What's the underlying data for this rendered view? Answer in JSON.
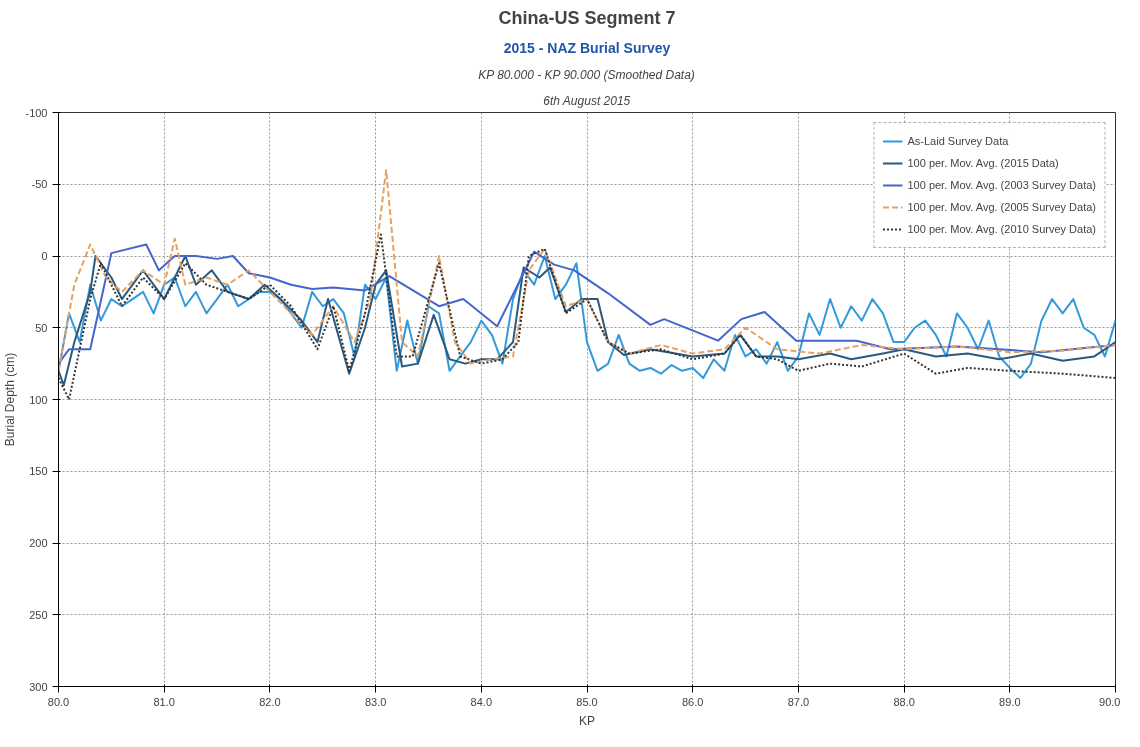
{
  "chart_data": {
    "type": "line",
    "title": "China-US Segment 7",
    "subtitle": "2015 - NAZ Burial Survey",
    "annotations": [
      "KP 80.000 - KP 90.000 (Smoothed Data)",
      "6th August 2015"
    ],
    "xlabel": "KP",
    "ylabel": "Burial Depth (cm)",
    "xlim": [
      80,
      90
    ],
    "ylim": [
      300,
      -100
    ],
    "xticks": [
      {
        "value": 80,
        "label": "80.0"
      },
      {
        "value": 81,
        "label": "81.0"
      },
      {
        "value": 82,
        "label": "82.0"
      },
      {
        "value": 83,
        "label": "83.0"
      },
      {
        "value": 84,
        "label": "84.0"
      },
      {
        "value": 85,
        "label": "85.0"
      },
      {
        "value": 86,
        "label": "86.0"
      },
      {
        "value": 87,
        "label": "87.0"
      },
      {
        "value": 88,
        "label": "88.0"
      },
      {
        "value": 89,
        "label": "89.0"
      },
      {
        "value": 90,
        "label": "90.0"
      }
    ],
    "yticks": [
      -100,
      -50,
      0,
      50,
      100,
      150,
      200,
      250,
      300
    ],
    "grid": true,
    "legend": "top right",
    "line_style": "solid",
    "series": [
      {
        "name": "As-Laid Survey Data",
        "color": "#3399dd",
        "x": [
          80.0,
          80.1,
          80.2,
          80.3,
          80.4,
          80.5,
          80.6,
          80.7,
          80.8,
          80.9,
          81.0,
          81.1,
          81.2,
          81.3,
          81.4,
          81.5,
          81.6,
          81.7,
          81.8,
          81.9,
          82.0,
          82.1,
          82.2,
          82.3,
          82.4,
          82.5,
          82.6,
          82.7,
          82.8,
          82.9,
          83.0,
          83.1,
          83.2,
          83.3,
          83.4,
          83.5,
          83.6,
          83.7,
          83.8,
          83.9,
          84.0,
          84.1,
          84.2,
          84.3,
          84.4,
          84.5,
          84.6,
          84.7,
          84.8,
          84.9,
          85.0,
          85.1,
          85.2,
          85.3,
          85.4,
          85.5,
          85.6,
          85.7,
          85.8,
          85.9,
          86.0,
          86.1,
          86.2,
          86.3,
          86.4,
          86.5,
          86.6,
          86.7,
          86.8,
          86.9,
          87.0,
          87.1,
          87.2,
          87.3,
          87.4,
          87.5,
          87.6,
          87.7,
          87.8,
          87.9,
          88.0,
          88.1,
          88.2,
          88.3,
          88.4,
          88.5,
          88.6,
          88.7,
          88.8,
          88.9,
          89.0,
          89.1,
          89.2,
          89.3,
          89.4,
          89.5,
          89.6,
          89.7,
          89.8,
          89.9,
          90.0
        ],
        "values": [
          80,
          40,
          60,
          20,
          45,
          30,
          35,
          30,
          25,
          40,
          20,
          15,
          35,
          25,
          40,
          30,
          20,
          35,
          30,
          25,
          25,
          30,
          40,
          50,
          25,
          35,
          30,
          40,
          70,
          20,
          30,
          15,
          80,
          45,
          75,
          35,
          40,
          80,
          70,
          60,
          45,
          55,
          75,
          30,
          10,
          20,
          0,
          30,
          20,
          5,
          60,
          80,
          75,
          55,
          75,
          80,
          78,
          82,
          76,
          80,
          78,
          85,
          72,
          80,
          55,
          70,
          65,
          75,
          60,
          80,
          70,
          40,
          55,
          30,
          50,
          35,
          45,
          30,
          40,
          60,
          60,
          50,
          45,
          55,
          70,
          40,
          50,
          65,
          45,
          70,
          78,
          85,
          75,
          45,
          30,
          40,
          30,
          50,
          55,
          70,
          45
        ]
      },
      {
        "name": "100 per. Mov. Avg. (2015 Data)",
        "color": "#2a5a80",
        "x": [
          80.0,
          80.05,
          80.15,
          80.3,
          80.35,
          80.5,
          80.6,
          80.8,
          81.0,
          81.2,
          81.3,
          81.45,
          81.6,
          81.8,
          81.95,
          82.1,
          82.3,
          82.45,
          82.55,
          82.75,
          82.9,
          83.0,
          83.1,
          83.25,
          83.4,
          83.55,
          83.7,
          83.85,
          84.0,
          84.15,
          84.3,
          84.4,
          84.55,
          84.65,
          84.8,
          84.95,
          85.1,
          85.2,
          85.35,
          85.6,
          86.0,
          86.3,
          86.45,
          86.6,
          86.8,
          87.0,
          87.3,
          87.5,
          87.8,
          88.0,
          88.3,
          88.6,
          88.9,
          89.2,
          89.5,
          89.8,
          90.0
        ],
        "values": [
          80,
          90,
          60,
          25,
          0,
          15,
          30,
          10,
          30,
          0,
          20,
          10,
          25,
          30,
          20,
          30,
          45,
          60,
          30,
          82,
          50,
          20,
          10,
          77,
          75,
          41,
          72,
          75,
          72,
          72,
          60,
          8,
          15,
          8,
          39,
          30,
          30,
          60,
          69,
          65,
          70,
          68,
          55,
          70,
          70,
          72,
          68,
          72,
          68,
          65,
          70,
          68,
          72,
          68,
          73,
          70,
          60
        ]
      },
      {
        "name": "100 per. Mov. Avg. (2003 Survey Data)",
        "color": "#4466cc",
        "x": [
          80.0,
          80.1,
          80.3,
          80.5,
          80.83,
          80.95,
          81.1,
          81.3,
          81.5,
          81.65,
          81.8,
          82.0,
          82.2,
          82.4,
          82.6,
          82.9,
          83.13,
          83.6,
          83.83,
          84.15,
          84.5,
          84.69,
          84.88,
          85.2,
          85.6,
          85.73,
          86.24,
          86.46,
          86.68,
          86.98,
          87.55,
          87.87,
          88.5,
          89.3,
          90.0
        ],
        "values": [
          75,
          65,
          65,
          -2,
          -8,
          10,
          0,
          0,
          2,
          0,
          12,
          15,
          20,
          23,
          22,
          24,
          14,
          35,
          30,
          49,
          -3,
          6,
          10,
          26,
          48,
          44,
          59,
          44,
          39,
          59,
          59,
          65,
          63,
          67,
          62
        ]
      },
      {
        "name": "100 per. Mov. Avg. (2005 Survey Data)",
        "color": "#e8a060",
        "line_style": "dashed",
        "x": [
          80.0,
          80.15,
          80.3,
          80.45,
          80.6,
          80.8,
          81.0,
          81.1,
          81.2,
          81.4,
          81.6,
          81.8,
          82.0,
          82.2,
          82.4,
          82.6,
          82.8,
          82.95,
          83.1,
          83.25,
          83.4,
          83.6,
          83.75,
          83.9,
          84.1,
          84.3,
          84.45,
          84.6,
          84.8,
          85.0,
          85.2,
          85.4,
          85.7,
          86.0,
          86.3,
          86.5,
          86.8,
          87.2,
          87.6,
          88.0,
          88.5,
          89.0,
          89.5,
          90.0
        ],
        "values": [
          80,
          20,
          -8,
          15,
          25,
          10,
          20,
          -12,
          20,
          15,
          20,
          10,
          25,
          40,
          55,
          35,
          60,
          30,
          -60,
          60,
          70,
          0,
          60,
          75,
          72,
          70,
          10,
          -5,
          35,
          30,
          60,
          68,
          62,
          68,
          65,
          50,
          65,
          68,
          62,
          65,
          63,
          67,
          66,
          62
        ]
      },
      {
        "name": "100 per. Mov. Avg. (2010 Survey Data)",
        "color": "#333333",
        "line_style": "dotted",
        "x": [
          80.0,
          80.1,
          80.3,
          80.4,
          80.6,
          80.8,
          81.0,
          81.2,
          81.4,
          81.6,
          81.8,
          82.0,
          82.2,
          82.45,
          82.6,
          82.75,
          82.9,
          83.05,
          83.2,
          83.35,
          83.6,
          83.8,
          84.0,
          84.2,
          84.35,
          84.45,
          84.6,
          84.8,
          85.0,
          85.2,
          85.4,
          85.7,
          86.0,
          86.3,
          86.45,
          86.6,
          86.8,
          87.0,
          87.3,
          87.6,
          88.0,
          88.3,
          88.6,
          89.0,
          89.5,
          90.0
        ],
        "values": [
          85,
          100,
          30,
          5,
          35,
          15,
          30,
          5,
          20,
          25,
          30,
          20,
          35,
          65,
          35,
          80,
          40,
          -15,
          70,
          70,
          5,
          70,
          75,
          72,
          60,
          0,
          -5,
          40,
          30,
          60,
          68,
          65,
          72,
          68,
          55,
          70,
          72,
          80,
          75,
          77,
          68,
          82,
          78,
          80,
          82,
          85
        ]
      }
    ]
  }
}
